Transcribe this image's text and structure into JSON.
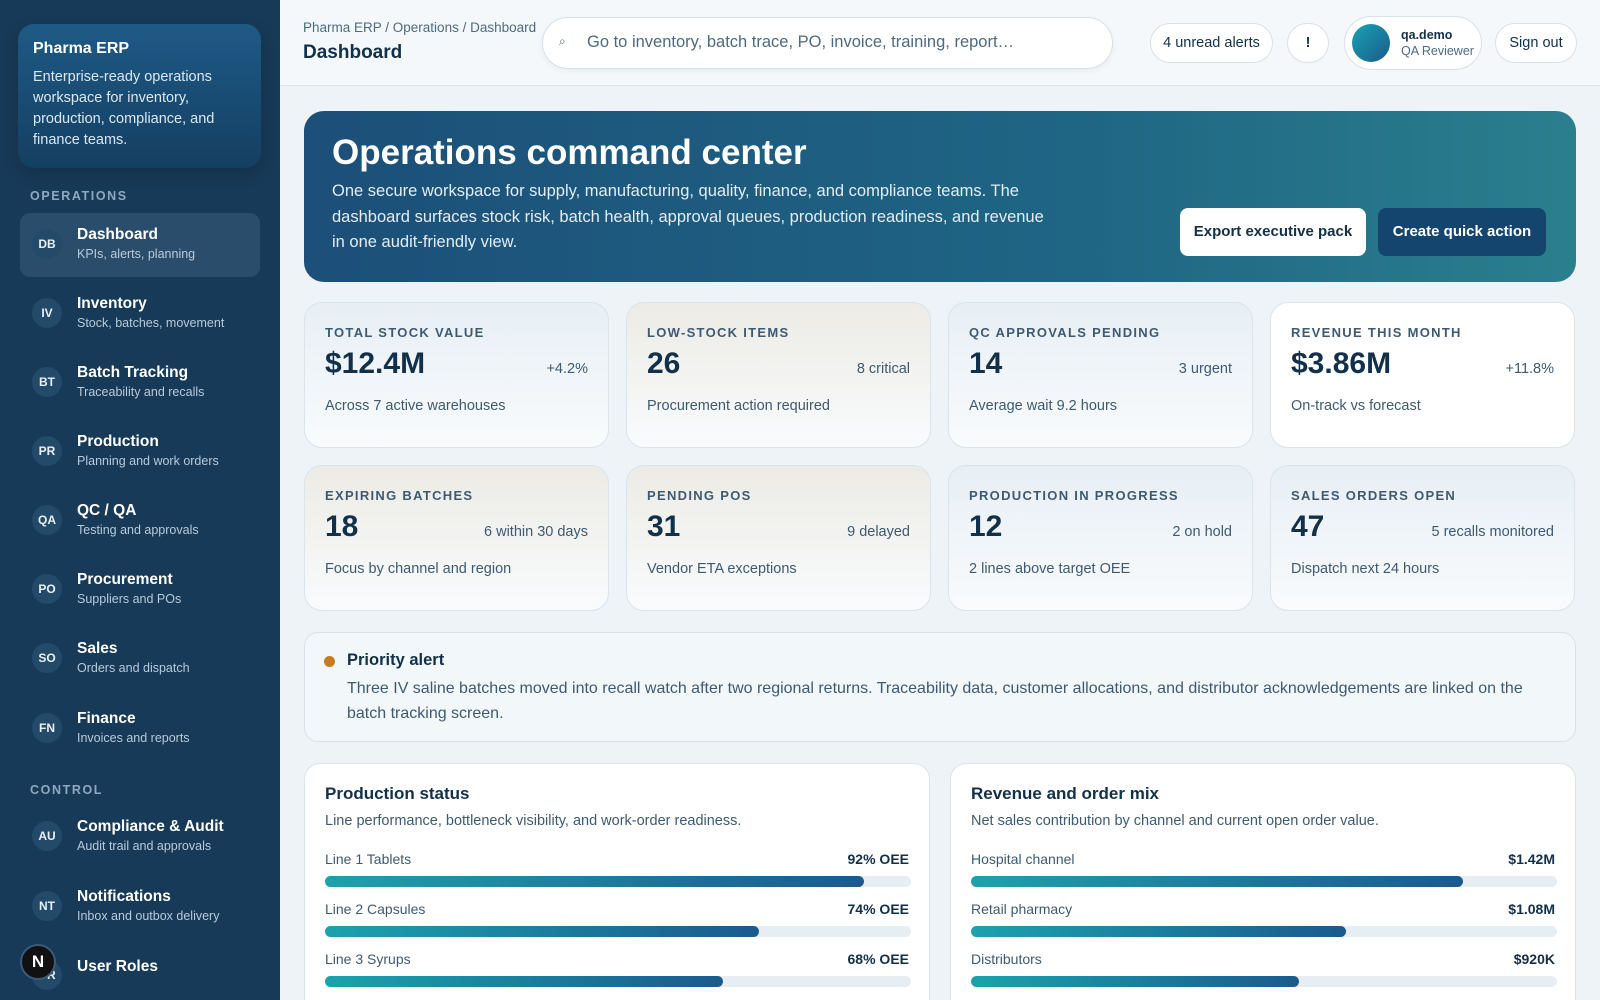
{
  "sidebar": {
    "brand": {
      "title": "Pharma ERP",
      "description": "Enterprise-ready operations workspace for inventory, production, compliance, and finance teams."
    },
    "sections": [
      "OPERATIONS",
      "CONTROL"
    ],
    "items": [
      {
        "code": "DB",
        "label": "Dashboard",
        "sub": "KPIs, alerts, planning"
      },
      {
        "code": "IV",
        "label": "Inventory",
        "sub": "Stock, batches, movement"
      },
      {
        "code": "BT",
        "label": "Batch Tracking",
        "sub": "Traceability and recalls"
      },
      {
        "code": "PR",
        "label": "Production",
        "sub": "Planning and work orders"
      },
      {
        "code": "QA",
        "label": "QC / QA",
        "sub": "Testing and approvals"
      },
      {
        "code": "PO",
        "label": "Procurement",
        "sub": "Suppliers and POs"
      },
      {
        "code": "SO",
        "label": "Sales",
        "sub": "Orders and dispatch"
      },
      {
        "code": "FN",
        "label": "Finance",
        "sub": "Invoices and reports"
      },
      {
        "code": "AU",
        "label": "Compliance & Audit",
        "sub": "Audit trail and approvals"
      },
      {
        "code": "NT",
        "label": "Notifications",
        "sub": "Inbox and outbox delivery"
      },
      {
        "code": "UR",
        "label": "User Roles",
        "sub": ""
      }
    ],
    "badge": "N"
  },
  "topbar": {
    "breadcrumb": "Pharma ERP / Operations / Dashboard",
    "title": "Dashboard",
    "search_placeholder": "Go to inventory, batch trace, PO, invoice, training, report…",
    "search_icon": "⌕",
    "alerts": "4 unread alerts",
    "alert_icon": "!",
    "user_name": "qa.demo",
    "user_role": "QA Reviewer",
    "sign_out": "Sign out"
  },
  "hero": {
    "title": "Operations command center",
    "description": "One secure workspace for supply, manufacturing, quality, finance, and compliance teams. The dashboard surfaces stock risk, batch health, approval queues, production readiness, and revenue in one audit-friendly view.",
    "export_label": "Export executive pack",
    "create_label": "Create quick action"
  },
  "kpis": [
    {
      "label": "TOTAL STOCK VALUE",
      "value": "$12.4M",
      "delta": "+4.2%",
      "note": "Across 7 active warehouses"
    },
    {
      "label": "LOW-STOCK ITEMS",
      "value": "26",
      "delta": "8 critical",
      "note": "Procurement action required"
    },
    {
      "label": "QC APPROVALS PENDING",
      "value": "14",
      "delta": "3 urgent",
      "note": "Average wait 9.2 hours"
    },
    {
      "label": "REVENUE THIS MONTH",
      "value": "$3.86M",
      "delta": "+11.8%",
      "note": "On-track vs forecast"
    },
    {
      "label": "EXPIRING BATCHES",
      "value": "18",
      "delta": "6 within 30 days",
      "note": "Focus by channel and region"
    },
    {
      "label": "PENDING POS",
      "value": "31",
      "delta": "9 delayed",
      "note": "Vendor ETA exceptions"
    },
    {
      "label": "PRODUCTION IN PROGRESS",
      "value": "12",
      "delta": "2 on hold",
      "note": "2 lines above target OEE"
    },
    {
      "label": "SALES ORDERS OPEN",
      "value": "47",
      "delta": "5 recalls monitored",
      "note": "Dispatch next 24 hours"
    }
  ],
  "alert": {
    "title": "Priority alert",
    "text": "Three IV saline batches moved into recall watch after two regional returns. Traceability data, customer allocations, and distributor acknowledgements are linked on the batch tracking screen."
  },
  "production": {
    "title": "Production status",
    "subtitle": "Line performance, bottleneck visibility, and work-order readiness.",
    "rows": [
      {
        "label": "Line 1 Tablets",
        "value": "92% OEE",
        "fill": 0.92
      },
      {
        "label": "Line 2 Capsules",
        "value": "74% OEE",
        "fill": 0.74
      },
      {
        "label": "Line 3 Syrups",
        "value": "68% OEE",
        "fill": 0.68
      }
    ]
  },
  "revenue": {
    "title": "Revenue and order mix",
    "subtitle": "Net sales contribution by channel and current open order value.",
    "rows": [
      {
        "label": "Hospital channel",
        "value": "$1.42M",
        "fill": 0.84
      },
      {
        "label": "Retail pharmacy",
        "value": "$1.08M",
        "fill": 0.64
      },
      {
        "label": "Distributors",
        "value": "$920K",
        "fill": 0.56
      }
    ]
  }
}
